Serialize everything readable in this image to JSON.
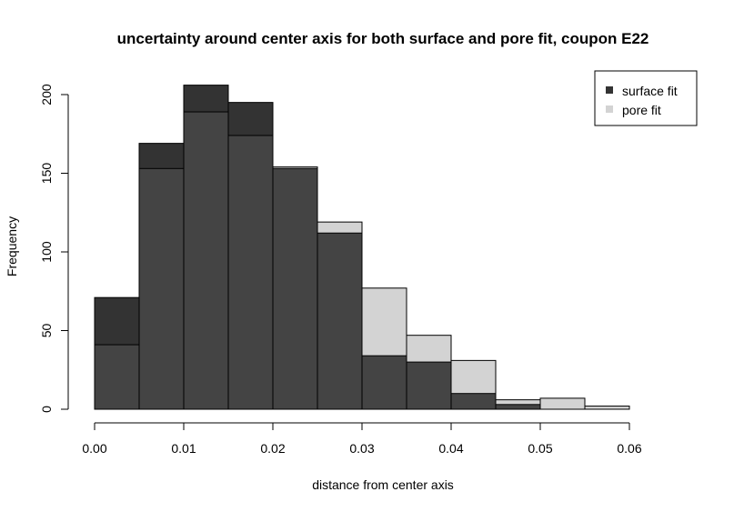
{
  "chart_data": {
    "type": "bar",
    "title": "uncertainty around center axis for both surface and pore fit, coupon E22",
    "xlabel": "distance from center axis",
    "ylabel": "Frequency",
    "bin_edges": [
      0.0,
      0.005,
      0.01,
      0.015,
      0.02,
      0.025,
      0.03,
      0.035,
      0.04,
      0.045,
      0.05,
      0.055,
      0.06
    ],
    "xlim": [
      0.0,
      0.06
    ],
    "ylim": [
      0,
      200
    ],
    "x_ticks": [
      "0.00",
      "0.01",
      "0.02",
      "0.03",
      "0.04",
      "0.05",
      "0.06"
    ],
    "y_ticks": [
      "0",
      "50",
      "100",
      "150",
      "200"
    ],
    "series": [
      {
        "name": "surface fit",
        "color": "#333333",
        "values": [
          71,
          169,
          206,
          195,
          153,
          112,
          34,
          30,
          10,
          3,
          0,
          0
        ]
      },
      {
        "name": "pore fit",
        "color": "#d3d3d3",
        "values": [
          41,
          153,
          189,
          174,
          154,
          119,
          77,
          47,
          31,
          6,
          7,
          2
        ]
      }
    ],
    "overlap_color": "#444444",
    "legend_position": "top-right",
    "grid": false
  }
}
